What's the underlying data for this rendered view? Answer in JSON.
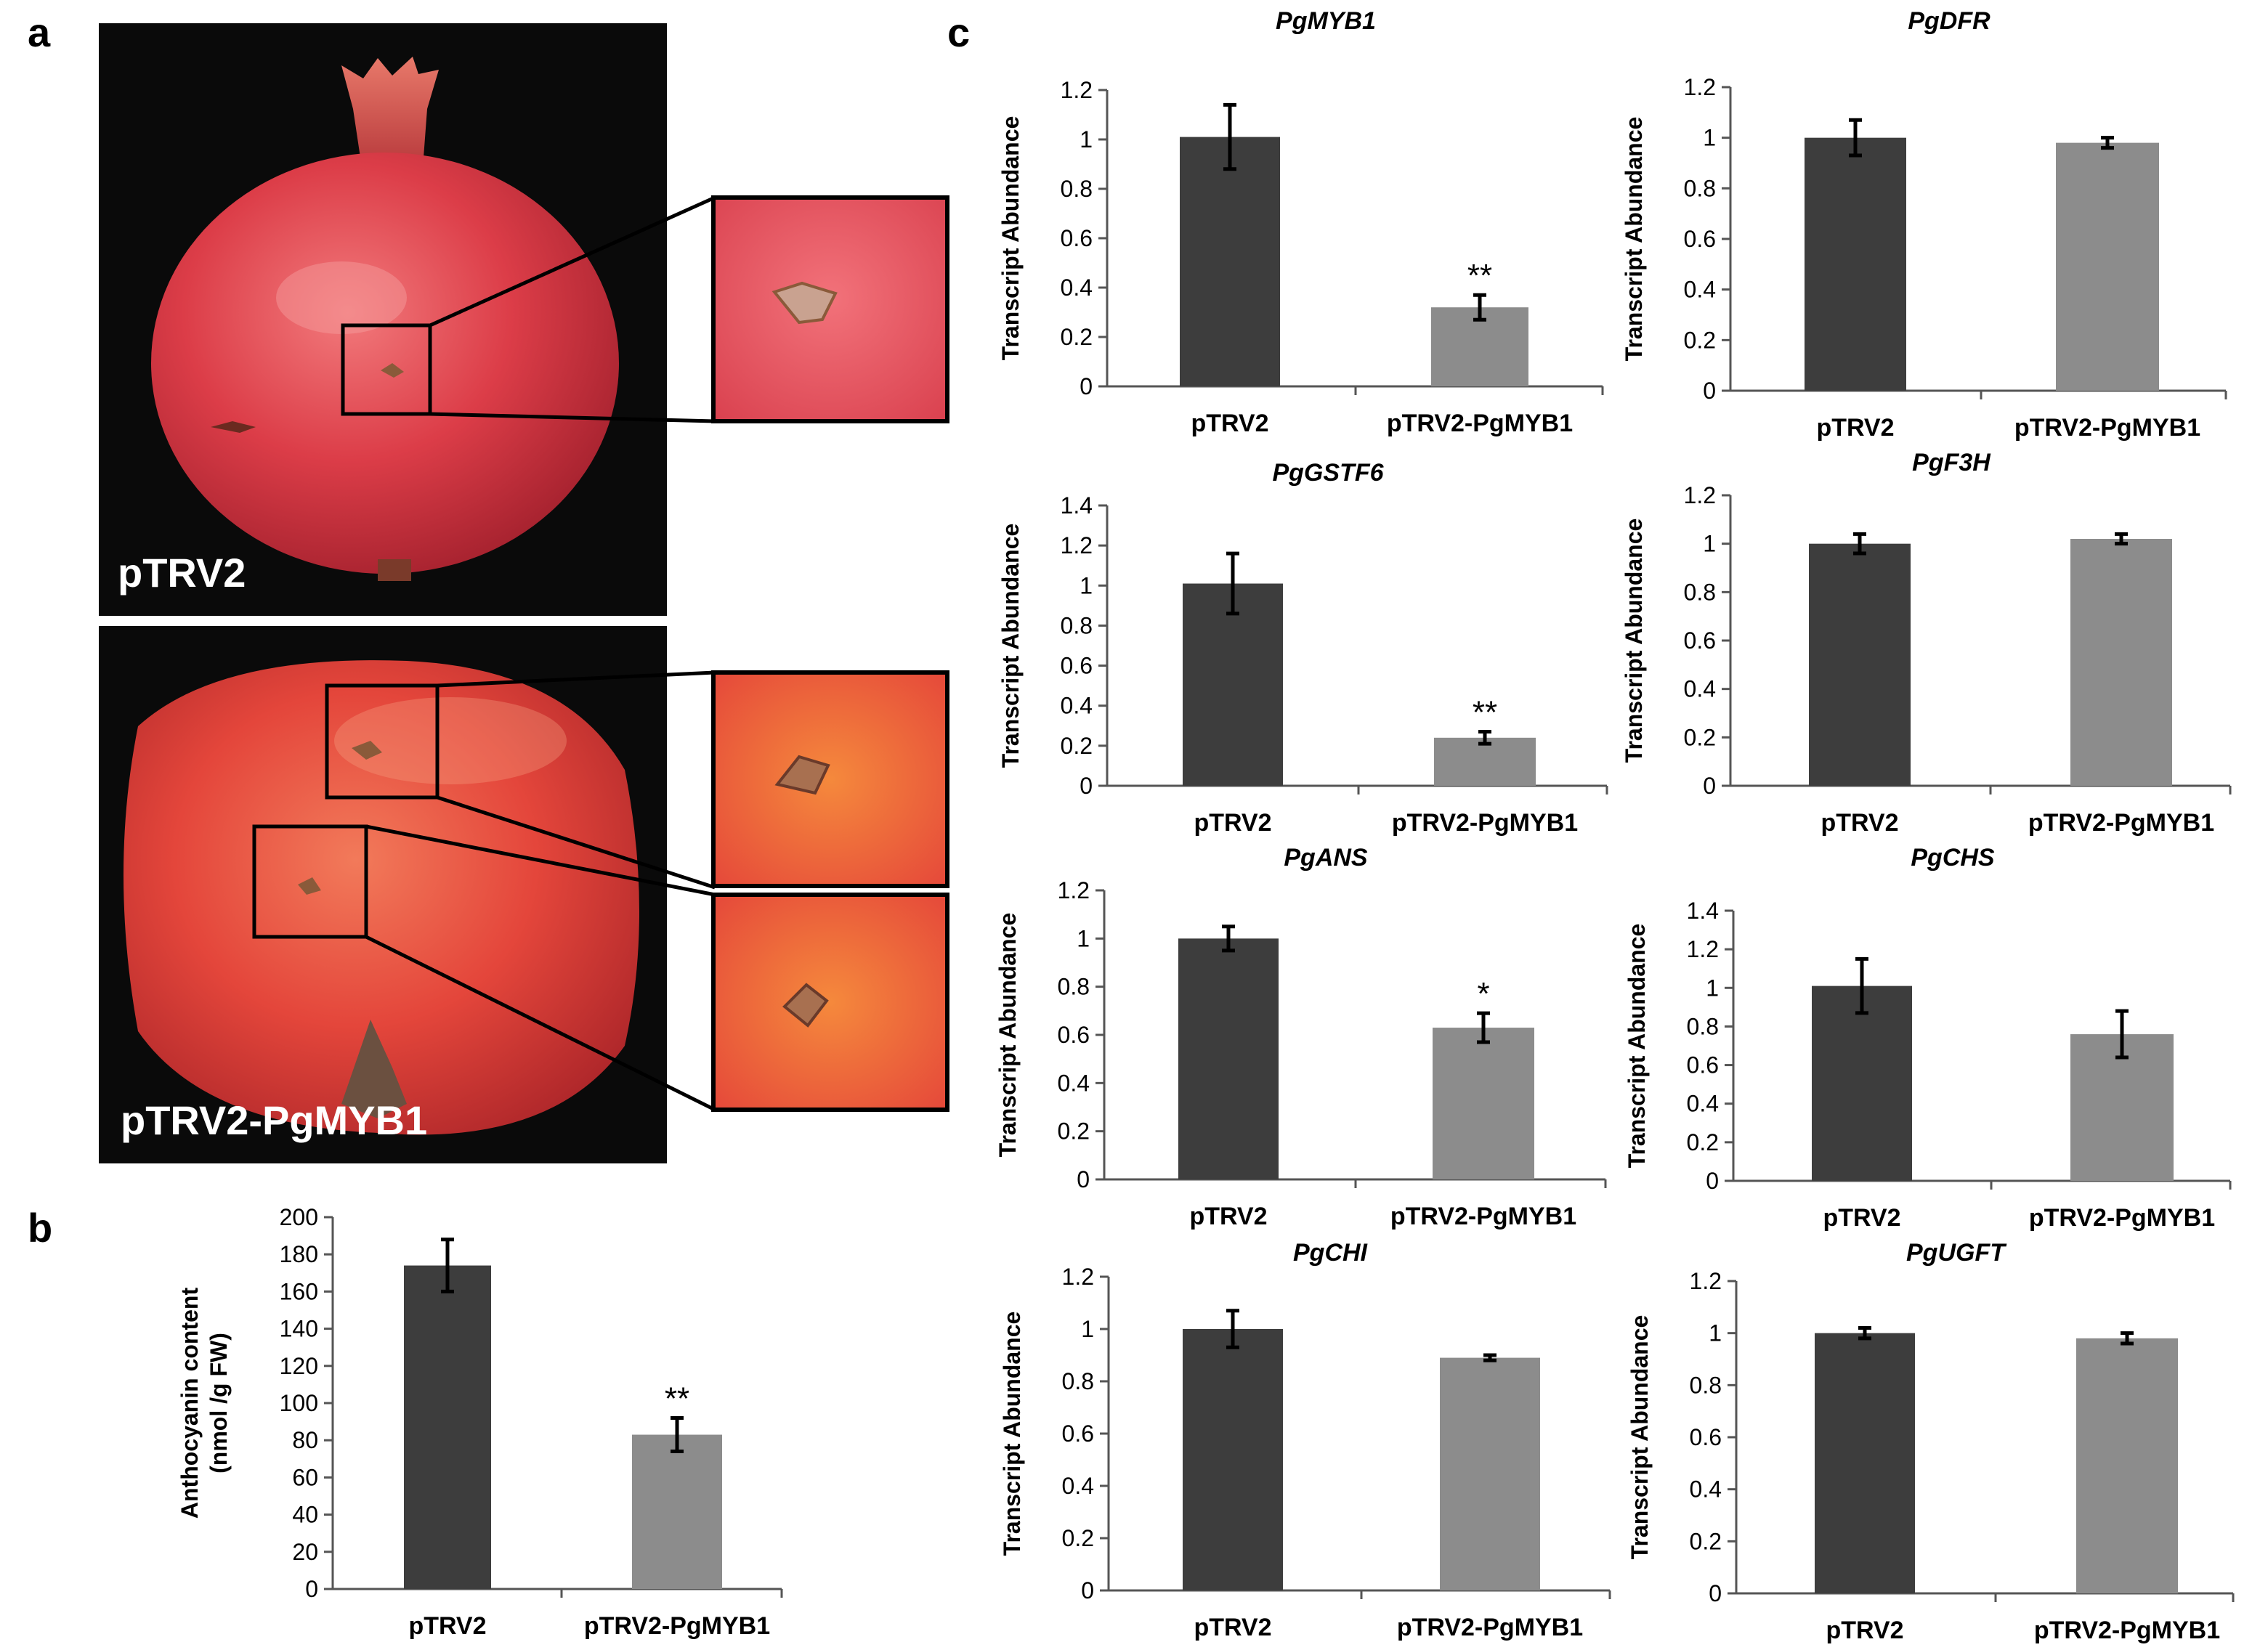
{
  "panel_labels": {
    "a": "a",
    "b": "b",
    "c": "c"
  },
  "photos": {
    "top_label": "pTRV2",
    "bottom_label": "pTRV2-PgMYB1",
    "colors": {
      "background": "#0a0a0a",
      "fruit": "#d63a45",
      "fruit_light": "#ef6f73",
      "fruit_dark": "#9a1f2a",
      "bottom_fruit": "#e84b3a",
      "wound": "#8a5a3a"
    }
  },
  "colors": {
    "dark_bar": "#3d3d3d",
    "light_bar": "#8c8c8c",
    "axis": "#555555",
    "text": "#000000"
  },
  "chart_data": [
    {
      "id": "b",
      "type": "bar",
      "title": "",
      "title_italic": false,
      "ylabel_lines": [
        "Anthocyanin content",
        "(nmol /g FW)"
      ],
      "categories": [
        "pTRV2",
        "pTRV2-PgMYB1"
      ],
      "values": [
        174,
        83
      ],
      "errors": [
        14,
        9
      ],
      "significance": [
        "",
        "**"
      ],
      "ylim": [
        0,
        200
      ],
      "yticks": [
        "0",
        "20",
        "40",
        "60",
        "80",
        "100",
        "120",
        "140",
        "160",
        "180",
        "200"
      ]
    },
    {
      "id": "c-PgMYB1",
      "type": "bar",
      "title": "PgMYB1",
      "title_italic": true,
      "ylabel_lines": [
        "Transcript Abundance"
      ],
      "categories": [
        "pTRV2",
        "pTRV2-PgMYB1"
      ],
      "values": [
        1.01,
        0.32
      ],
      "errors": [
        0.13,
        0.05
      ],
      "significance": [
        "",
        "**"
      ],
      "ylim": [
        0,
        1.2
      ],
      "yticks": [
        "0",
        "0.2",
        "0.4",
        "0.6",
        "0.8",
        "1",
        "1.2"
      ]
    },
    {
      "id": "c-PgDFR",
      "type": "bar",
      "title": "PgDFR",
      "title_italic": true,
      "ylabel_lines": [
        "Transcript Abundance"
      ],
      "categories": [
        "pTRV2",
        "pTRV2-PgMYB1"
      ],
      "values": [
        1.0,
        0.98
      ],
      "errors": [
        0.07,
        0.02
      ],
      "significance": [
        "",
        ""
      ],
      "ylim": [
        0,
        1.2
      ],
      "yticks": [
        "0",
        "0.2",
        "0.4",
        "0.6",
        "0.8",
        "1",
        "1.2"
      ]
    },
    {
      "id": "c-PgGSTF6",
      "type": "bar",
      "title": "PgGSTF6",
      "title_italic": true,
      "ylabel_lines": [
        "Transcript Abundance"
      ],
      "categories": [
        "pTRV2",
        "pTRV2-PgMYB1"
      ],
      "values": [
        1.01,
        0.24
      ],
      "errors": [
        0.15,
        0.03
      ],
      "significance": [
        "",
        "**"
      ],
      "ylim": [
        0,
        1.4
      ],
      "yticks": [
        "0",
        "0.2",
        "0.4",
        "0.6",
        "0.8",
        "1",
        "1.2",
        "1.4"
      ]
    },
    {
      "id": "c-PgF3H",
      "type": "bar",
      "title": "PgF3H",
      "title_italic": true,
      "ylabel_lines": [
        "Transcript Abundance"
      ],
      "categories": [
        "pTRV2",
        "pTRV2-PgMYB1"
      ],
      "values": [
        1.0,
        1.02
      ],
      "errors": [
        0.04,
        0.02
      ],
      "significance": [
        "",
        ""
      ],
      "ylim": [
        0,
        1.2
      ],
      "yticks": [
        "0",
        "0.2",
        "0.4",
        "0.6",
        "0.8",
        "1",
        "1.2"
      ]
    },
    {
      "id": "c-PgANS",
      "type": "bar",
      "title": "PgANS",
      "title_italic": true,
      "ylabel_lines": [
        "Transcript Abundance"
      ],
      "categories": [
        "pTRV2",
        "pTRV2-PgMYB1"
      ],
      "values": [
        1.0,
        0.63
      ],
      "errors": [
        0.05,
        0.06
      ],
      "significance": [
        "",
        "*"
      ],
      "ylim": [
        0,
        1.2
      ],
      "yticks": [
        "0",
        "0.2",
        "0.4",
        "0.6",
        "0.8",
        "1",
        "1.2"
      ]
    },
    {
      "id": "c-PgCHS",
      "type": "bar",
      "title": "PgCHS",
      "title_italic": true,
      "ylabel_lines": [
        "Transcript Abundance"
      ],
      "categories": [
        "pTRV2",
        "pTRV2-PgMYB1"
      ],
      "values": [
        1.01,
        0.76
      ],
      "errors": [
        0.14,
        0.12
      ],
      "significance": [
        "",
        ""
      ],
      "ylim": [
        0,
        1.4
      ],
      "yticks": [
        "0",
        "0.2",
        "0.4",
        "0.6",
        "0.8",
        "1",
        "1.2",
        "1.4"
      ]
    },
    {
      "id": "c-PgCHI",
      "type": "bar",
      "title": "PgCHI",
      "title_italic": true,
      "ylabel_lines": [
        "Transcript Abundance"
      ],
      "categories": [
        "pTRV2",
        "pTRV2-PgMYB1"
      ],
      "values": [
        1.0,
        0.89
      ],
      "errors": [
        0.07,
        0.01
      ],
      "significance": [
        "",
        ""
      ],
      "ylim": [
        0,
        1.2
      ],
      "yticks": [
        "0",
        "0.2",
        "0.4",
        "0.6",
        "0.8",
        "1",
        "1.2"
      ]
    },
    {
      "id": "c-PgUGFT",
      "type": "bar",
      "title": "PgUGFT",
      "title_italic": true,
      "ylabel_lines": [
        "Transcript Abundance"
      ],
      "categories": [
        "pTRV2",
        "pTRV2-PgMYB1"
      ],
      "values": [
        1.0,
        0.98
      ],
      "errors": [
        0.02,
        0.02
      ],
      "significance": [
        "",
        ""
      ],
      "ylim": [
        0,
        1.2
      ],
      "yticks": [
        "0",
        "0.2",
        "0.4",
        "0.6",
        "0.8",
        "1",
        "1.2"
      ]
    }
  ]
}
